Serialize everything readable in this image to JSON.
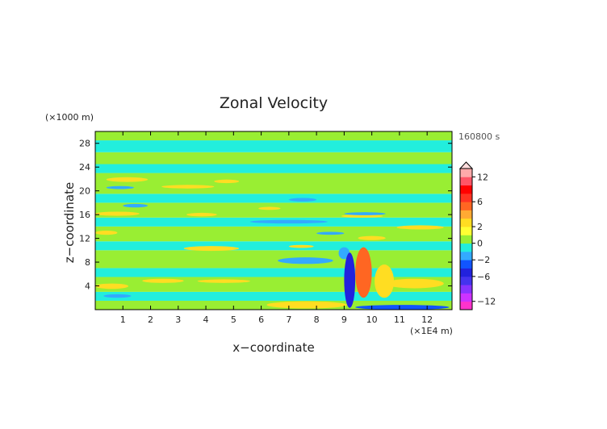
{
  "chart_data": {
    "type": "heatmap",
    "title": "Zonal Velocity",
    "xlabel": "x−coordinate",
    "ylabel": "z−coordinate",
    "x_unit_label": "(×1E4 m)",
    "y_unit_label": "(×1000 m)",
    "time_label": "160800 s",
    "xlim": [
      0,
      12.9
    ],
    "ylim": [
      0,
      30
    ],
    "x_ticks": [
      1,
      2,
      3,
      4,
      5,
      6,
      7,
      8,
      9,
      10,
      11,
      12
    ],
    "y_ticks": [
      4,
      8,
      12,
      16,
      20,
      24,
      28
    ],
    "colorbar": {
      "levels": [
        -14,
        -12,
        -10,
        -8,
        -6,
        -4,
        -2,
        -1,
        0,
        1,
        2,
        3,
        4,
        6,
        8,
        10,
        12,
        14
      ],
      "colors": [
        "#ff33cc",
        "#cc33ff",
        "#8833ff",
        "#4433ee",
        "#2222dd",
        "#1155ff",
        "#33aaff",
        "#22eedd",
        "#99ee33",
        "#ffff33",
        "#ffdd22",
        "#ffaa33",
        "#ff6622",
        "#ff3322",
        "#ff0000",
        "#ff5566",
        "#ffaaaa"
      ],
      "tick_values": [
        12,
        6,
        2,
        0,
        -2,
        -6,
        -12
      ],
      "tick_labels": [
        "12",
        "6",
        "2",
        "0",
        "−2",
        "−6",
        "−12"
      ],
      "extend": "max"
    },
    "field_description_levels": {
      "background_bands": [
        {
          "z_from": 0,
          "z_to": 1.5,
          "value": 0.6
        },
        {
          "z_from": 1.5,
          "z_to": 3,
          "value": -0.6
        },
        {
          "z_from": 3,
          "z_to": 5.5,
          "value": 0.6
        },
        {
          "z_from": 5.5,
          "z_to": 7,
          "value": -0.6
        },
        {
          "z_from": 7,
          "z_to": 10,
          "value": 0.6
        },
        {
          "z_from": 10,
          "z_to": 11.5,
          "value": -0.6
        },
        {
          "z_from": 11.5,
          "z_to": 14,
          "value": 0.6
        },
        {
          "z_from": 14,
          "z_to": 15.5,
          "value": -0.6
        },
        {
          "z_from": 15.5,
          "z_to": 18,
          "value": 0.6
        },
        {
          "z_from": 18,
          "z_to": 19.5,
          "value": -0.6
        },
        {
          "z_from": 19.5,
          "z_to": 23,
          "value": 0.6
        },
        {
          "z_from": 23,
          "z_to": 24.5,
          "value": -0.6
        },
        {
          "z_from": 24.5,
          "z_to": 26.5,
          "value": 0.6
        },
        {
          "z_from": 26.5,
          "z_to": 28.5,
          "value": -0.6
        },
        {
          "z_from": 28.5,
          "z_to": 30,
          "value": 0.6
        }
      ],
      "features": [
        {
          "x": [
            0.4,
            1.9
          ],
          "z": [
            21.5,
            22.3
          ],
          "value": 2.5
        },
        {
          "x": [
            4.3,
            5.2
          ],
          "z": [
            21.3,
            21.9
          ],
          "value": 2.5
        },
        {
          "x": [
            2.4,
            4.3
          ],
          "z": [
            20.4,
            21.0
          ],
          "value": 2.5
        },
        {
          "x": [
            0.4,
            1.4
          ],
          "z": [
            20.3,
            20.8
          ],
          "value": -1.5
        },
        {
          "x": [
            7.0,
            8.0
          ],
          "z": [
            18.2,
            18.8
          ],
          "value": -1.5
        },
        {
          "x": [
            1.0,
            1.9
          ],
          "z": [
            17.2,
            17.8
          ],
          "value": -1.5
        },
        {
          "x": [
            0.0,
            1.6
          ],
          "z": [
            15.8,
            16.5
          ],
          "value": 2.5
        },
        {
          "x": [
            3.3,
            4.4
          ],
          "z": [
            15.7,
            16.3
          ],
          "value": 2.5
        },
        {
          "x": [
            5.9,
            6.7
          ],
          "z": [
            16.8,
            17.3
          ],
          "value": 2.5
        },
        {
          "x": [
            8.9,
            10.4
          ],
          "z": [
            15.5,
            16.0
          ],
          "value": 2.5
        },
        {
          "x": [
            9.0,
            10.5
          ],
          "z": [
            15.9,
            16.4
          ],
          "value": -1.5
        },
        {
          "x": [
            5.6,
            8.4
          ],
          "z": [
            14.5,
            15.1
          ],
          "value": -1.5
        },
        {
          "x": [
            0.0,
            0.8
          ],
          "z": [
            12.6,
            13.3
          ],
          "value": 2.5
        },
        {
          "x": [
            8.0,
            9.0
          ],
          "z": [
            12.6,
            13.1
          ],
          "value": -1.5
        },
        {
          "x": [
            9.5,
            10.5
          ],
          "z": [
            11.7,
            12.4
          ],
          "value": 2.5
        },
        {
          "x": [
            10.9,
            12.6
          ],
          "z": [
            13.5,
            14.2
          ],
          "value": 2.5
        },
        {
          "x": [
            3.2,
            5.2
          ],
          "z": [
            9.9,
            10.7
          ],
          "value": 2.5
        },
        {
          "x": [
            7.0,
            7.9
          ],
          "z": [
            10.4,
            10.9
          ],
          "value": 2.5
        },
        {
          "x": [
            6.6,
            8.6
          ],
          "z": [
            7.7,
            8.8
          ],
          "value": -1.5
        },
        {
          "x": [
            8.8,
            9.2
          ],
          "z": [
            8.5,
            10.5
          ],
          "value": -1.5
        },
        {
          "x": [
            0.0,
            1.2
          ],
          "z": [
            3.5,
            4.4
          ],
          "value": 2.5
        },
        {
          "x": [
            1.7,
            3.2
          ],
          "z": [
            4.5,
            5.2
          ],
          "value": 2.5
        },
        {
          "x": [
            3.7,
            5.6
          ],
          "z": [
            4.5,
            5.1
          ],
          "value": 2.5
        },
        {
          "x": [
            10.5,
            12.6
          ],
          "z": [
            3.6,
            5.2
          ],
          "value": 2.5
        },
        {
          "x": [
            0.3,
            1.3
          ],
          "z": [
            2.0,
            2.6
          ],
          "value": -1.5
        },
        {
          "x": [
            6.2,
            9.1
          ],
          "z": [
            0.2,
            1.4
          ],
          "value": 2.5
        },
        {
          "x": [
            9.4,
            12.8
          ],
          "z": [
            0.0,
            0.8
          ],
          "value": -3.5
        },
        {
          "x": [
            9.0,
            9.4
          ],
          "z": [
            0.3,
            9.6
          ],
          "value": -5.0
        },
        {
          "x": [
            9.4,
            10.0
          ],
          "z": [
            2.0,
            10.5
          ],
          "value": 4.5
        },
        {
          "x": [
            10.1,
            10.8
          ],
          "z": [
            2.0,
            7.6
          ],
          "value": 2.5
        }
      ]
    }
  }
}
